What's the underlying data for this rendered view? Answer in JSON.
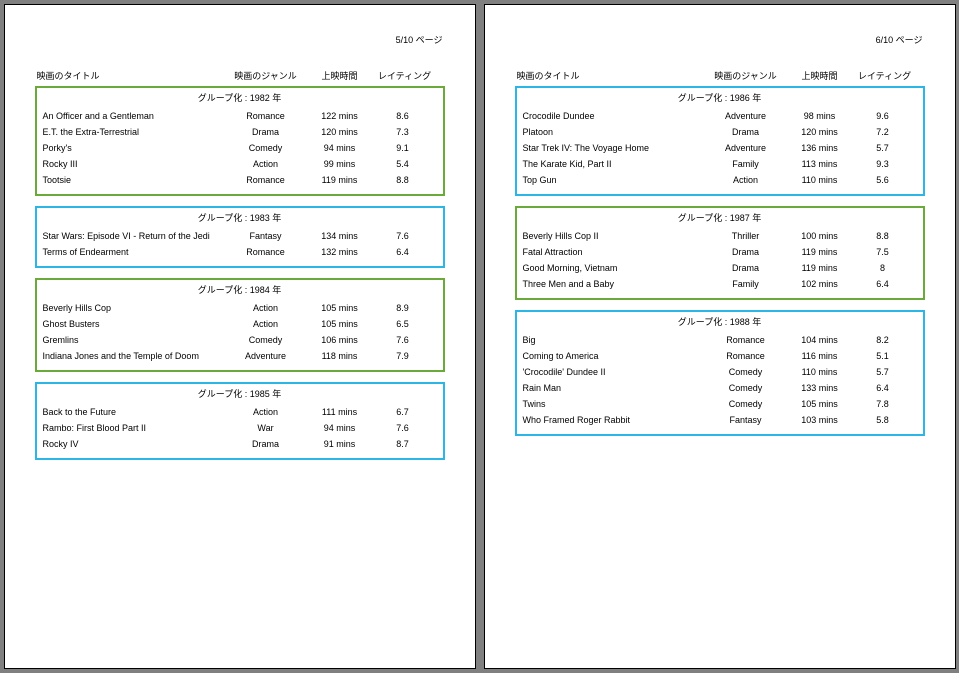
{
  "page_label_suffix": "ページ",
  "group_label_prefix": "グループ化 :",
  "group_label_suffix": "年",
  "columns": {
    "title": "映画のタイトル",
    "genre": "映画のジャンル",
    "runtime": "上映時間",
    "rating": "レイティング"
  },
  "colors": {
    "green": "#6aaa3a",
    "blue": "#2bb6e6",
    "page_bg": "#ffffff",
    "text": "#000000"
  },
  "pages": [
    {
      "page_num": "5/10",
      "groups": [
        {
          "year": "1982",
          "color": "green",
          "rows": [
            {
              "title": "An Officer and a Gentleman",
              "genre": "Romance",
              "runtime": "122 mins",
              "rating": "8.6"
            },
            {
              "title": "E.T. the Extra-Terrestrial",
              "genre": "Drama",
              "runtime": "120 mins",
              "rating": "7.3"
            },
            {
              "title": "Porky's",
              "genre": "Comedy",
              "runtime": "94 mins",
              "rating": "9.1"
            },
            {
              "title": "Rocky III",
              "genre": "Action",
              "runtime": "99 mins",
              "rating": "5.4"
            },
            {
              "title": "Tootsie",
              "genre": "Romance",
              "runtime": "119 mins",
              "rating": "8.8"
            }
          ]
        },
        {
          "year": "1983",
          "color": "blue",
          "rows": [
            {
              "title": "Star Wars: Episode VI - Return of the Jedi",
              "genre": "Fantasy",
              "runtime": "134 mins",
              "rating": "7.6"
            },
            {
              "title": "Terms of Endearment",
              "genre": "Romance",
              "runtime": "132 mins",
              "rating": "6.4"
            }
          ]
        },
        {
          "year": "1984",
          "color": "green",
          "rows": [
            {
              "title": "Beverly Hills Cop",
              "genre": "Action",
              "runtime": "105 mins",
              "rating": "8.9"
            },
            {
              "title": "Ghost Busters",
              "genre": "Action",
              "runtime": "105 mins",
              "rating": "6.5"
            },
            {
              "title": "Gremlins",
              "genre": "Comedy",
              "runtime": "106 mins",
              "rating": "7.6"
            },
            {
              "title": "Indiana Jones and the Temple of Doom",
              "genre": "Adventure",
              "runtime": "118 mins",
              "rating": "7.9"
            }
          ]
        },
        {
          "year": "1985",
          "color": "blue",
          "rows": [
            {
              "title": "Back to the Future",
              "genre": "Action",
              "runtime": "111 mins",
              "rating": "6.7"
            },
            {
              "title": "Rambo: First Blood Part II",
              "genre": "War",
              "runtime": "94 mins",
              "rating": "7.6"
            },
            {
              "title": "Rocky IV",
              "genre": "Drama",
              "runtime": "91 mins",
              "rating": "8.7"
            }
          ]
        }
      ]
    },
    {
      "page_num": "6/10",
      "groups": [
        {
          "year": "1986",
          "color": "blue",
          "rows": [
            {
              "title": "Crocodile Dundee",
              "genre": "Adventure",
              "runtime": "98 mins",
              "rating": "9.6"
            },
            {
              "title": "Platoon",
              "genre": "Drama",
              "runtime": "120 mins",
              "rating": "7.2"
            },
            {
              "title": "Star Trek IV: The Voyage Home",
              "genre": "Adventure",
              "runtime": "136 mins",
              "rating": "5.7"
            },
            {
              "title": "The Karate Kid, Part II",
              "genre": "Family",
              "runtime": "113 mins",
              "rating": "9.3"
            },
            {
              "title": "Top Gun",
              "genre": "Action",
              "runtime": "110 mins",
              "rating": "5.6"
            }
          ]
        },
        {
          "year": "1987",
          "color": "green",
          "rows": [
            {
              "title": "Beverly Hills Cop II",
              "genre": "Thriller",
              "runtime": "100 mins",
              "rating": "8.8"
            },
            {
              "title": "Fatal Attraction",
              "genre": "Drama",
              "runtime": "119 mins",
              "rating": "7.5"
            },
            {
              "title": "Good Morning, Vietnam",
              "genre": "Drama",
              "runtime": "119 mins",
              "rating": "8"
            },
            {
              "title": "Three Men and a Baby",
              "genre": "Family",
              "runtime": "102 mins",
              "rating": "6.4"
            }
          ]
        },
        {
          "year": "1988",
          "color": "blue",
          "rows": [
            {
              "title": "Big",
              "genre": "Romance",
              "runtime": "104 mins",
              "rating": "8.2"
            },
            {
              "title": "Coming to America",
              "genre": "Romance",
              "runtime": "116 mins",
              "rating": "5.1"
            },
            {
              "title": "'Crocodile' Dundee II",
              "genre": "Comedy",
              "runtime": "110 mins",
              "rating": "5.7"
            },
            {
              "title": "Rain Man",
              "genre": "Comedy",
              "runtime": "133 mins",
              "rating": "6.4"
            },
            {
              "title": "Twins",
              "genre": "Comedy",
              "runtime": "105 mins",
              "rating": "7.8"
            },
            {
              "title": "Who Framed Roger Rabbit",
              "genre": "Fantasy",
              "runtime": "103 mins",
              "rating": "5.8"
            }
          ]
        }
      ]
    }
  ]
}
